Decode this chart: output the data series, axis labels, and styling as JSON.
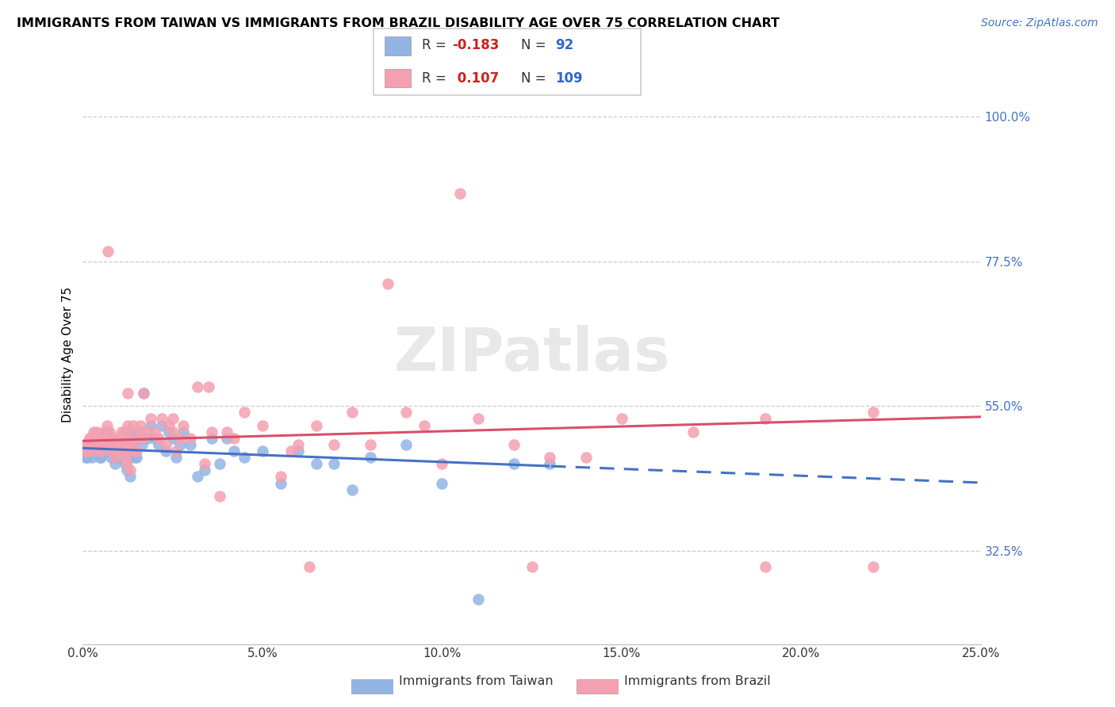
{
  "title": "IMMIGRANTS FROM TAIWAN VS IMMIGRANTS FROM BRAZIL DISABILITY AGE OVER 75 CORRELATION CHART",
  "source": "Source: ZipAtlas.com",
  "ylabel": "Disability Age Over 75",
  "y_ticks": [
    32.5,
    55.0,
    77.5,
    100.0
  ],
  "y_tick_labels": [
    "32.5%",
    "55.0%",
    "77.5%",
    "100.0%"
  ],
  "x_min": 0.0,
  "x_max": 25.0,
  "y_min": 18.0,
  "y_max": 108.0,
  "taiwan_color": "#92b4e3",
  "brazil_color": "#f4a0b0",
  "taiwan_R": -0.183,
  "taiwan_N": 92,
  "brazil_R": 0.107,
  "brazil_N": 109,
  "legend_R_color": "#cc2222",
  "legend_N_color": "#3366cc",
  "taiwan_scatter_x": [
    0.05,
    0.08,
    0.1,
    0.12,
    0.15,
    0.18,
    0.2,
    0.22,
    0.25,
    0.28,
    0.3,
    0.32,
    0.35,
    0.38,
    0.4,
    0.42,
    0.45,
    0.48,
    0.5,
    0.52,
    0.55,
    0.58,
    0.6,
    0.62,
    0.65,
    0.68,
    0.7,
    0.72,
    0.75,
    0.78,
    0.8,
    0.82,
    0.85,
    0.88,
    0.9,
    0.92,
    0.95,
    0.98,
    1.0,
    1.02,
    1.05,
    1.08,
    1.1,
    1.12,
    1.15,
    1.18,
    1.2,
    1.22,
    1.25,
    1.28,
    1.3,
    1.32,
    1.35,
    1.38,
    1.4,
    1.45,
    1.5,
    1.55,
    1.6,
    1.65,
    1.7,
    1.8,
    1.9,
    2.0,
    2.1,
    2.2,
    2.3,
    2.4,
    2.5,
    2.6,
    2.7,
    2.8,
    3.0,
    3.2,
    3.4,
    3.6,
    3.8,
    4.0,
    4.2,
    4.5,
    5.0,
    5.5,
    6.0,
    6.5,
    7.0,
    7.5,
    8.0,
    9.0,
    10.0,
    11.0,
    12.0,
    13.0
  ],
  "taiwan_scatter_y": [
    48,
    47,
    48,
    47,
    48,
    49,
    49,
    48,
    47,
    49,
    50,
    48,
    48,
    50,
    48,
    48,
    49,
    47,
    47,
    49,
    48,
    50,
    49,
    49,
    48,
    51,
    49,
    48,
    50,
    47,
    48,
    49,
    48,
    48,
    46,
    49,
    47,
    47,
    47,
    49,
    48,
    50,
    49,
    48,
    50,
    46,
    50,
    45,
    51,
    47,
    48,
    44,
    49,
    48,
    51,
    47,
    47,
    50,
    51,
    49,
    57,
    50,
    52,
    50,
    49,
    52,
    48,
    51,
    50,
    47,
    49,
    51,
    49,
    44,
    45,
    50,
    46,
    50,
    48,
    47,
    48,
    43,
    48,
    46,
    46,
    42,
    47,
    49,
    43,
    25,
    46,
    46
  ],
  "brazil_scatter_x": [
    0.05,
    0.08,
    0.1,
    0.12,
    0.15,
    0.18,
    0.2,
    0.22,
    0.25,
    0.28,
    0.3,
    0.32,
    0.35,
    0.38,
    0.4,
    0.42,
    0.45,
    0.48,
    0.5,
    0.52,
    0.55,
    0.58,
    0.6,
    0.62,
    0.65,
    0.68,
    0.7,
    0.72,
    0.75,
    0.78,
    0.8,
    0.82,
    0.85,
    0.88,
    0.9,
    0.92,
    0.95,
    0.98,
    1.0,
    1.02,
    1.05,
    1.08,
    1.1,
    1.12,
    1.15,
    1.18,
    1.2,
    1.22,
    1.25,
    1.28,
    1.3,
    1.32,
    1.35,
    1.38,
    1.4,
    1.45,
    1.5,
    1.55,
    1.6,
    1.65,
    1.7,
    1.8,
    1.9,
    2.0,
    2.1,
    2.2,
    2.3,
    2.4,
    2.5,
    2.6,
    2.7,
    2.8,
    3.0,
    3.2,
    3.4,
    3.6,
    3.8,
    4.0,
    4.2,
    4.5,
    5.0,
    5.5,
    6.0,
    6.5,
    7.0,
    7.5,
    8.0,
    9.0,
    10.0,
    11.0,
    12.0,
    13.0,
    14.0,
    15.0,
    17.0,
    19.0,
    22.0,
    1.25,
    0.7,
    2.5,
    5.8,
    9.5,
    3.5,
    6.3,
    8.5,
    10.5,
    12.5,
    22.0,
    19.0
  ],
  "brazil_scatter_y": [
    49,
    48,
    49,
    48,
    49,
    50,
    50,
    49,
    48,
    50,
    51,
    49,
    49,
    51,
    49,
    49,
    50,
    48,
    48,
    50,
    49,
    51,
    50,
    50,
    49,
    52,
    50,
    49,
    51,
    48,
    49,
    50,
    49,
    49,
    47,
    50,
    48,
    48,
    48,
    50,
    49,
    51,
    50,
    49,
    51,
    47,
    51,
    46,
    52,
    48,
    49,
    45,
    50,
    49,
    52,
    48,
    48,
    51,
    52,
    50,
    57,
    51,
    53,
    51,
    50,
    53,
    49,
    52,
    51,
    48,
    50,
    52,
    50,
    58,
    46,
    51,
    41,
    51,
    50,
    54,
    52,
    44,
    49,
    52,
    49,
    54,
    49,
    54,
    46,
    53,
    49,
    47,
    47,
    53,
    51,
    53,
    30,
    57,
    79,
    53,
    48,
    52,
    58,
    30,
    74,
    88,
    30,
    54,
    30
  ]
}
